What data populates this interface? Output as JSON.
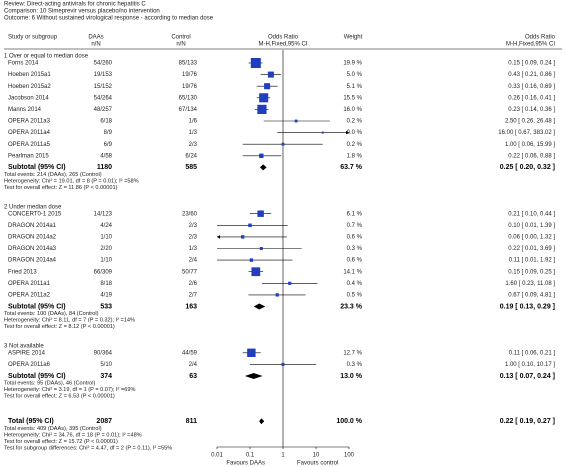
{
  "chart_data": {
    "type": "forest",
    "header": {
      "review": "Review:   Direct-acting antivirals for chronic hepatitis C",
      "comparison": "Comparison:   10 Simeprevir versus placebo/no intervention",
      "outcome": "Outcome:   6 Without sustained virological response - according to median dose"
    },
    "columns": [
      {
        "label": "Study or subgroup"
      },
      {
        "label": "DAAs",
        "sub": "n/N"
      },
      {
        "label": "Control",
        "sub": "n/N"
      },
      {
        "label": "Odds Ratio",
        "sub": "M-H,Fixed,95% CI"
      },
      {
        "label": "Weight"
      },
      {
        "label": "Odds Ratio",
        "sub": "M-H,Fixed,95% CI"
      }
    ],
    "groups": [
      {
        "title": "1 Over or equal to median dose",
        "rows": [
          {
            "study": "Forns 2014",
            "daas": "54/260",
            "control": "85/133",
            "weight": 19.9,
            "weight_label": "19.9 %",
            "or": 0.15,
            "ci": [
              0.09,
              0.24
            ],
            "or_label": "0.15 [ 0.09, 0.24 ]"
          },
          {
            "study": "Hoeben 2015a1",
            "daas": "19/153",
            "control": "19/76",
            "weight": 5.0,
            "weight_label": "5.0 %",
            "or": 0.43,
            "ci": [
              0.21,
              0.86
            ],
            "or_label": "0.43 [ 0.21, 0.86 ]"
          },
          {
            "study": "Hoeben 2015a2",
            "daas": "15/152",
            "control": "19/76",
            "weight": 5.1,
            "weight_label": "5.1 %",
            "or": 0.33,
            "ci": [
              0.16,
              0.69
            ],
            "or_label": "0.33 [ 0.16, 0.69 ]"
          },
          {
            "study": "Jacobson 2014",
            "daas": "54/264",
            "control": "65/130",
            "weight": 15.5,
            "weight_label": "15.5 %",
            "or": 0.26,
            "ci": [
              0.16,
              0.41
            ],
            "or_label": "0.26 [ 0.16, 0.41 ]"
          },
          {
            "study": "Manns 2014",
            "daas": "48/257",
            "control": "67/134",
            "weight": 16.0,
            "weight_label": "16.0 %",
            "or": 0.23,
            "ci": [
              0.14,
              0.36
            ],
            "or_label": "0.23 [ 0.14, 0.36 ]"
          },
          {
            "study": "OPERA 2011a3",
            "daas": "6/18",
            "control": "1/6",
            "weight": 0.2,
            "weight_label": "0.2 %",
            "or": 2.5,
            "ci": [
              0.26,
              26.48
            ],
            "or_label": "2.50 [ 0.26, 26.48 ]"
          },
          {
            "study": "OPERA 2011a4",
            "daas": "8/9",
            "control": "1/3",
            "weight": 0.0,
            "weight_label": "0.0 %",
            "or": 16.0,
            "ci": [
              0.67,
              383.02
            ],
            "or_label": "16.00 [ 0.67, 383.02 ]"
          },
          {
            "study": "OPERA 2011a5",
            "daas": "6/9",
            "control": "2/3",
            "weight": 0.2,
            "weight_label": "0.2 %",
            "or": 1.0,
            "ci": [
              0.06,
              15.99
            ],
            "or_label": "1.00 [ 0.06, 15.99 ]"
          },
          {
            "study": "Pearlman 2015",
            "daas": "4/58",
            "control": "6/24",
            "weight": 1.8,
            "weight_label": "1.8 %",
            "or": 0.22,
            "ci": [
              0.06,
              0.88
            ],
            "or_label": "0.22 [ 0.06, 0.88 ]"
          }
        ],
        "subtotal": {
          "label": "Subtotal (95% CI)",
          "daas": 1180,
          "control": 585,
          "weight": 63.7,
          "weight_label": "63.7 %",
          "or": 0.25,
          "ci": [
            0.2,
            0.32
          ],
          "or_label": "0.25 [ 0.20, 0.32 ]"
        },
        "notes": [
          "Total events: 214 (DAAs), 265 (Control)",
          "Heterogeneity: Chi² = 19.01, df = 8 (P = 0.01); I² =58%",
          "Test for overall effect: Z = 11.86 (P < 0.00001)"
        ]
      },
      {
        "title": "2 Under median dose",
        "rows": [
          {
            "study": "CONCERT0-1 2015",
            "daas": "14/123",
            "control": "23/60",
            "weight": 6.1,
            "weight_label": "6.1 %",
            "or": 0.21,
            "ci": [
              0.1,
              0.44
            ],
            "or_label": "0.21 [ 0.10, 0.44 ]"
          },
          {
            "study": "DRAGON 2014a1",
            "daas": "4/24",
            "control": "2/3",
            "weight": 0.7,
            "weight_label": "0.7 %",
            "or": 0.1,
            "ci": [
              0.01,
              1.39
            ],
            "or_label": "0.10 [ 0.01, 1.39 ]"
          },
          {
            "study": "DRAGON 2014a2",
            "daas": "1/10",
            "control": "2/3",
            "weight": 0.6,
            "weight_label": "0.6 %",
            "or": 0.06,
            "ci": [
              0.0,
              1.32
            ],
            "or_label": "0.06 [ 0.00, 1.32 ]"
          },
          {
            "study": "DRAGON 2014a3",
            "daas": "2/20",
            "control": "1/3",
            "weight": 0.3,
            "weight_label": "0.3 %",
            "or": 0.22,
            "ci": [
              0.01,
              3.69
            ],
            "or_label": "0.22 [ 0.01, 3.69 ]"
          },
          {
            "study": "DRAGON 2014a4",
            "daas": "1/10",
            "control": "2/4",
            "weight": 0.6,
            "weight_label": "0.6 %",
            "or": 0.11,
            "ci": [
              0.01,
              1.92
            ],
            "or_label": "0.11 [ 0.01, 1.92 ]"
          },
          {
            "study": "Fried 2013",
            "daas": "66/309",
            "control": "50/77",
            "weight": 14.1,
            "weight_label": "14.1 %",
            "or": 0.15,
            "ci": [
              0.09,
              0.25
            ],
            "or_label": "0.15 [ 0.09, 0.25 ]"
          },
          {
            "study": "OPERA 2011a1",
            "daas": "8/18",
            "control": "2/6",
            "weight": 0.4,
            "weight_label": "0.4 %",
            "or": 1.6,
            "ci": [
              0.23,
              11.08
            ],
            "or_label": "1.60 [ 0.23, 11.08 ]"
          },
          {
            "study": "OPERA 2011a2",
            "daas": "4/19",
            "control": "2/7",
            "weight": 0.5,
            "weight_label": "0.5 %",
            "or": 0.67,
            "ci": [
              0.09,
              4.81
            ],
            "or_label": "0.67 [ 0.09, 4.81 ]"
          }
        ],
        "subtotal": {
          "label": "Subtotal (95% CI)",
          "daas": 533,
          "control": 163,
          "weight": 23.3,
          "weight_label": "23.3 %",
          "or": 0.19,
          "ci": [
            0.13,
            0.29
          ],
          "or_label": "0.19 [ 0.13, 0.29 ]"
        },
        "notes": [
          "Total events: 100 (DAAs), 84 (Control)",
          "Heterogeneity: Chi² = 8.11, df = 7 (P = 0.32); I² =14%",
          "Test for overall effect: Z = 8.12 (P < 0.00001)"
        ]
      },
      {
        "title": "3 Not available",
        "rows": [
          {
            "study": "ASPIRE 2014",
            "daas": "90/364",
            "control": "44/59",
            "weight": 12.7,
            "weight_label": "12.7 %",
            "or": 0.11,
            "ci": [
              0.06,
              0.21
            ],
            "or_label": "0.11 [ 0.06, 0.21 ]"
          },
          {
            "study": "OPERA 2011a6",
            "daas": "5/10",
            "control": "2/4",
            "weight": 0.3,
            "weight_label": "0.3 %",
            "or": 1.0,
            "ci": [
              0.1,
              10.17
            ],
            "or_label": "1.00 [ 0.10, 10.17 ]"
          }
        ],
        "subtotal": {
          "label": "Subtotal (95% CI)",
          "daas": 374,
          "control": 63,
          "weight": 13.0,
          "weight_label": "13.0 %",
          "or": 0.13,
          "ci": [
            0.07,
            0.24
          ],
          "or_label": "0.13 [ 0.07, 0.24 ]"
        },
        "notes": [
          "Total events: 95 (DAAs), 46 (Control)",
          "Heterogeneity: Chi² = 3.19, df = 1 (P = 0.07); I² =69%",
          "Test for overall effect: Z = 6.53 (P < 0.00001)"
        ]
      }
    ],
    "total": {
      "label": "Total (95% CI)",
      "daas": 2087,
      "control": 811,
      "weight": 100.0,
      "weight_label": "100.0 %",
      "or": 0.22,
      "ci": [
        0.19,
        0.27
      ],
      "or_label": "0.22 [ 0.19, 0.27 ]",
      "notes": [
        "Total events: 409 (DAAs), 395 (Control)",
        "Heterogeneity: Chi² = 34.76, df = 18 (P = 0.01); I² =48%",
        "Test for overall effect: Z = 15.72 (P < 0.00001)",
        "Test for subgroup differences: Chi² = 4.47, df = 2 (P = 0.11), I² =55%"
      ]
    },
    "xlim": [
      0.01,
      100
    ],
    "xticks": [
      0.01,
      0.1,
      1,
      10,
      100
    ],
    "log_x": true,
    "favours": [
      "Favours DAAs",
      "Favours control"
    ],
    "square_color": "#1f3fbf"
  }
}
